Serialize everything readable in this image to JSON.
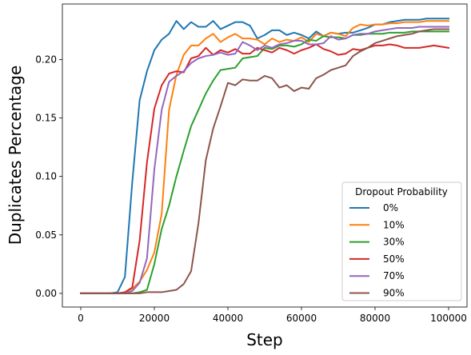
{
  "chart_data": {
    "type": "line",
    "title": "",
    "xlabel": "Step",
    "ylabel": "Duplicates Percentage",
    "xlim": [
      -5000,
      105000
    ],
    "ylim": [
      -0.0117,
      0.2475
    ],
    "xticks": [
      0,
      20000,
      40000,
      60000,
      80000,
      100000
    ],
    "xtick_labels": [
      "0",
      "20000",
      "40000",
      "60000",
      "80000",
      "100000"
    ],
    "yticks": [
      0.0,
      0.05,
      0.1,
      0.15,
      0.2
    ],
    "ytick_labels": [
      "0.00",
      "0.05",
      "0.10",
      "0.15",
      "0.20"
    ],
    "grid": false,
    "legend": {
      "title": "Dropout Probability",
      "placement": "lower-right"
    },
    "x": [
      0,
      2000,
      4000,
      6000,
      8000,
      10000,
      12000,
      14000,
      16000,
      18000,
      20000,
      22000,
      24000,
      26000,
      28000,
      30000,
      32000,
      34000,
      36000,
      38000,
      40000,
      42000,
      44000,
      46000,
      48000,
      50000,
      52000,
      54000,
      56000,
      58000,
      60000,
      62000,
      64000,
      66000,
      68000,
      70000,
      72000,
      74000,
      76000,
      78000,
      80000,
      82000,
      84000,
      86000,
      88000,
      90000,
      92000,
      94000,
      96000,
      98000,
      100000
    ],
    "series": [
      {
        "name": "0%",
        "color": "#1f77b4",
        "values": [
          0.0,
          0.0,
          0.0,
          0.0,
          0.0,
          0.001,
          0.014,
          0.095,
          0.165,
          0.19,
          0.208,
          0.217,
          0.222,
          0.233,
          0.226,
          0.232,
          0.228,
          0.228,
          0.233,
          0.226,
          0.229,
          0.232,
          0.232,
          0.229,
          0.218,
          0.221,
          0.225,
          0.225,
          0.221,
          0.223,
          0.221,
          0.218,
          0.224,
          0.22,
          0.223,
          0.222,
          0.223,
          0.223,
          0.225,
          0.227,
          0.23,
          0.23,
          0.232,
          0.233,
          0.234,
          0.234,
          0.234,
          0.235,
          0.235,
          0.235,
          0.235
        ]
      },
      {
        "name": "10%",
        "color": "#ff7f0e",
        "values": [
          0.0,
          0.0,
          0.0,
          0.0,
          0.0,
          0.0,
          0.001,
          0.004,
          0.01,
          0.02,
          0.035,
          0.068,
          0.157,
          0.187,
          0.204,
          0.212,
          0.212,
          0.218,
          0.222,
          0.215,
          0.219,
          0.222,
          0.218,
          0.218,
          0.217,
          0.213,
          0.218,
          0.215,
          0.217,
          0.216,
          0.219,
          0.215,
          0.222,
          0.22,
          0.223,
          0.222,
          0.22,
          0.227,
          0.23,
          0.229,
          0.23,
          0.23,
          0.231,
          0.231,
          0.232,
          0.232,
          0.232,
          0.233,
          0.233,
          0.233,
          0.233
        ]
      },
      {
        "name": "30%",
        "color": "#2ca02c",
        "values": [
          0.0,
          0.0,
          0.0,
          0.0,
          0.0,
          0.0,
          0.0,
          0.0,
          0.001,
          0.003,
          0.025,
          0.055,
          0.075,
          0.1,
          0.122,
          0.143,
          0.157,
          0.171,
          0.182,
          0.191,
          0.192,
          0.193,
          0.201,
          0.202,
          0.203,
          0.21,
          0.209,
          0.212,
          0.212,
          0.211,
          0.213,
          0.217,
          0.216,
          0.22,
          0.219,
          0.219,
          0.218,
          0.221,
          0.221,
          0.222,
          0.222,
          0.222,
          0.223,
          0.223,
          0.223,
          0.224,
          0.224,
          0.224,
          0.224,
          0.224,
          0.224
        ]
      },
      {
        "name": "50%",
        "color": "#d62728",
        "values": [
          0.0,
          0.0,
          0.0,
          0.0,
          0.0,
          0.0,
          0.001,
          0.005,
          0.045,
          0.112,
          0.158,
          0.178,
          0.188,
          0.19,
          0.189,
          0.201,
          0.203,
          0.21,
          0.204,
          0.208,
          0.206,
          0.209,
          0.205,
          0.205,
          0.21,
          0.208,
          0.206,
          0.21,
          0.208,
          0.205,
          0.208,
          0.21,
          0.213,
          0.209,
          0.207,
          0.204,
          0.205,
          0.209,
          0.208,
          0.21,
          0.212,
          0.212,
          0.213,
          0.212,
          0.21,
          0.21,
          0.21,
          0.211,
          0.212,
          0.211,
          0.21
        ]
      },
      {
        "name": "70%",
        "color": "#9467bd",
        "values": [
          0.0,
          0.0,
          0.0,
          0.0,
          0.0,
          0.0,
          0.0,
          0.002,
          0.009,
          0.03,
          0.106,
          0.157,
          0.181,
          0.186,
          0.19,
          0.197,
          0.201,
          0.203,
          0.204,
          0.206,
          0.204,
          0.205,
          0.215,
          0.212,
          0.208,
          0.212,
          0.21,
          0.213,
          0.214,
          0.216,
          0.216,
          0.213,
          0.213,
          0.214,
          0.22,
          0.217,
          0.218,
          0.221,
          0.222,
          0.222,
          0.224,
          0.225,
          0.226,
          0.227,
          0.227,
          0.227,
          0.228,
          0.228,
          0.228,
          0.228,
          0.228
        ]
      },
      {
        "name": "90%",
        "color": "#8c564b",
        "values": [
          0.0,
          0.0,
          0.0,
          0.0,
          0.0,
          0.0,
          0.0,
          0.0,
          0.0,
          0.001,
          0.001,
          0.001,
          0.002,
          0.003,
          0.008,
          0.019,
          0.06,
          0.114,
          0.141,
          0.16,
          0.18,
          0.178,
          0.183,
          0.182,
          0.182,
          0.186,
          0.184,
          0.176,
          0.178,
          0.173,
          0.176,
          0.175,
          0.184,
          0.187,
          0.191,
          0.193,
          0.195,
          0.203,
          0.207,
          0.21,
          0.214,
          0.216,
          0.218,
          0.22,
          0.221,
          0.222,
          0.224,
          0.225,
          0.226,
          0.226,
          0.226
        ]
      }
    ]
  }
}
